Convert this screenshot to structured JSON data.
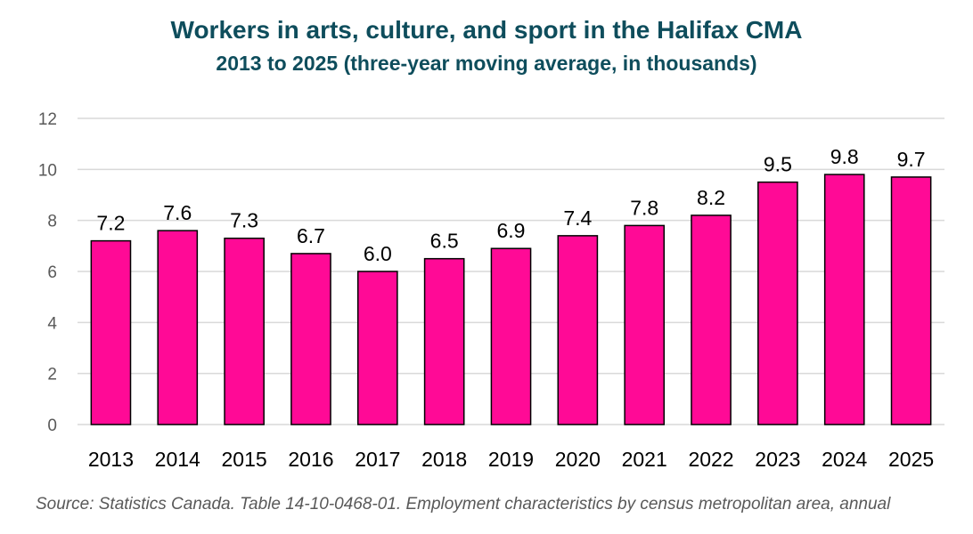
{
  "chart_data": {
    "type": "bar",
    "title": "Workers in arts, culture, and sport in the Halifax CMA",
    "subtitle": "2013 to 2025 (three-year moving average, in thousands)",
    "categories": [
      "2013",
      "2014",
      "2015",
      "2016",
      "2017",
      "2018",
      "2019",
      "2020",
      "2021",
      "2022",
      "2023",
      "2024",
      "2025"
    ],
    "values": [
      7.2,
      7.6,
      7.3,
      6.7,
      6.0,
      6.5,
      6.9,
      7.4,
      7.8,
      8.2,
      9.5,
      9.8,
      9.7
    ],
    "data_labels": [
      "7.2",
      "7.6",
      "7.3",
      "6.7",
      "6.0",
      "6.5",
      "6.9",
      "7.4",
      "7.8",
      "8.2",
      "9.5",
      "9.8",
      "9.7"
    ],
    "ylim": [
      0,
      12
    ],
    "yticks": [
      0,
      2,
      4,
      6,
      8,
      10,
      12
    ],
    "grid": true,
    "bar_color": "#ff0a96",
    "bar_outline": "#000000",
    "title_color": "#0e4d5c"
  },
  "source": "Source: Statistics Canada. Table 14-10-0468-01. Employment characteristics by census metropolitan area, annual"
}
